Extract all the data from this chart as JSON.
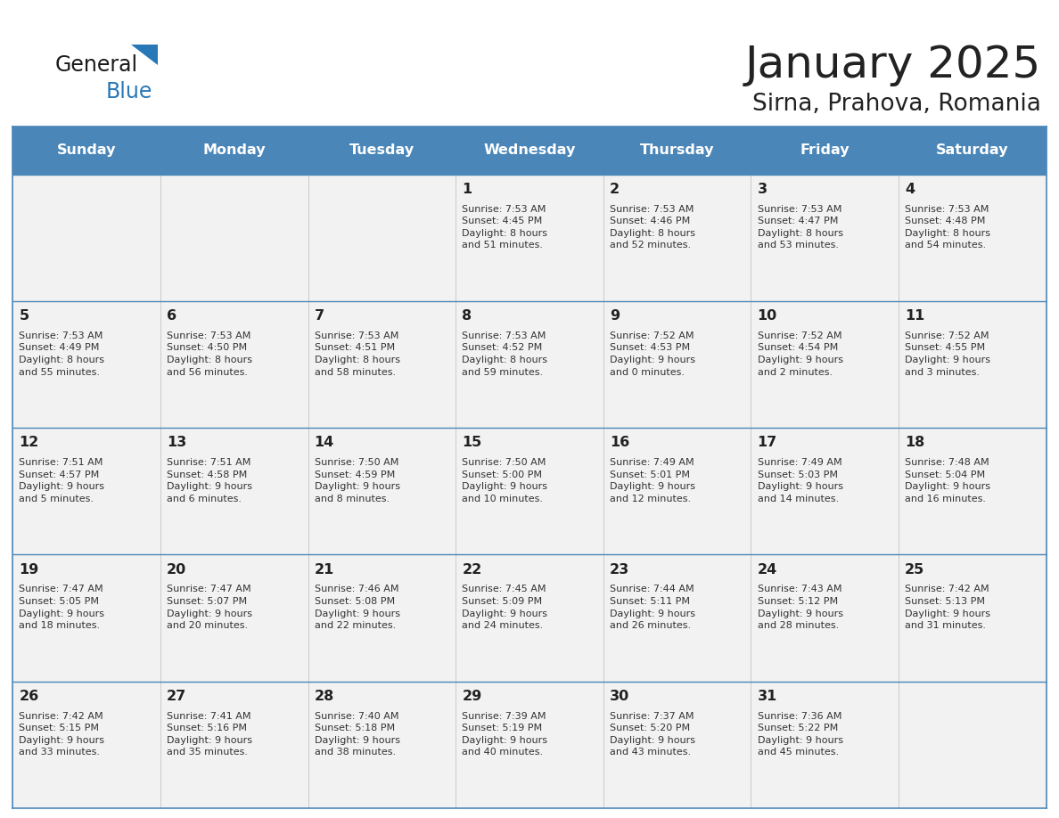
{
  "title": "January 2025",
  "subtitle": "Sirna, Prahova, Romania",
  "days_of_week": [
    "Sunday",
    "Monday",
    "Tuesday",
    "Wednesday",
    "Thursday",
    "Friday",
    "Saturday"
  ],
  "header_bg": "#4a86b8",
  "header_text": "#ffffff",
  "cell_bg_light": "#f2f2f2",
  "cell_bg_white": "#ffffff",
  "line_color": "#4a86b8",
  "title_color": "#222222",
  "subtitle_color": "#222222",
  "day_number_color": "#222222",
  "cell_text_color": "#333333",
  "calendar_data": [
    [
      {
        "day": "",
        "info": ""
      },
      {
        "day": "",
        "info": ""
      },
      {
        "day": "",
        "info": ""
      },
      {
        "day": "1",
        "info": "Sunrise: 7:53 AM\nSunset: 4:45 PM\nDaylight: 8 hours\nand 51 minutes."
      },
      {
        "day": "2",
        "info": "Sunrise: 7:53 AM\nSunset: 4:46 PM\nDaylight: 8 hours\nand 52 minutes."
      },
      {
        "day": "3",
        "info": "Sunrise: 7:53 AM\nSunset: 4:47 PM\nDaylight: 8 hours\nand 53 minutes."
      },
      {
        "day": "4",
        "info": "Sunrise: 7:53 AM\nSunset: 4:48 PM\nDaylight: 8 hours\nand 54 minutes."
      }
    ],
    [
      {
        "day": "5",
        "info": "Sunrise: 7:53 AM\nSunset: 4:49 PM\nDaylight: 8 hours\nand 55 minutes."
      },
      {
        "day": "6",
        "info": "Sunrise: 7:53 AM\nSunset: 4:50 PM\nDaylight: 8 hours\nand 56 minutes."
      },
      {
        "day": "7",
        "info": "Sunrise: 7:53 AM\nSunset: 4:51 PM\nDaylight: 8 hours\nand 58 minutes."
      },
      {
        "day": "8",
        "info": "Sunrise: 7:53 AM\nSunset: 4:52 PM\nDaylight: 8 hours\nand 59 minutes."
      },
      {
        "day": "9",
        "info": "Sunrise: 7:52 AM\nSunset: 4:53 PM\nDaylight: 9 hours\nand 0 minutes."
      },
      {
        "day": "10",
        "info": "Sunrise: 7:52 AM\nSunset: 4:54 PM\nDaylight: 9 hours\nand 2 minutes."
      },
      {
        "day": "11",
        "info": "Sunrise: 7:52 AM\nSunset: 4:55 PM\nDaylight: 9 hours\nand 3 minutes."
      }
    ],
    [
      {
        "day": "12",
        "info": "Sunrise: 7:51 AM\nSunset: 4:57 PM\nDaylight: 9 hours\nand 5 minutes."
      },
      {
        "day": "13",
        "info": "Sunrise: 7:51 AM\nSunset: 4:58 PM\nDaylight: 9 hours\nand 6 minutes."
      },
      {
        "day": "14",
        "info": "Sunrise: 7:50 AM\nSunset: 4:59 PM\nDaylight: 9 hours\nand 8 minutes."
      },
      {
        "day": "15",
        "info": "Sunrise: 7:50 AM\nSunset: 5:00 PM\nDaylight: 9 hours\nand 10 minutes."
      },
      {
        "day": "16",
        "info": "Sunrise: 7:49 AM\nSunset: 5:01 PM\nDaylight: 9 hours\nand 12 minutes."
      },
      {
        "day": "17",
        "info": "Sunrise: 7:49 AM\nSunset: 5:03 PM\nDaylight: 9 hours\nand 14 minutes."
      },
      {
        "day": "18",
        "info": "Sunrise: 7:48 AM\nSunset: 5:04 PM\nDaylight: 9 hours\nand 16 minutes."
      }
    ],
    [
      {
        "day": "19",
        "info": "Sunrise: 7:47 AM\nSunset: 5:05 PM\nDaylight: 9 hours\nand 18 minutes."
      },
      {
        "day": "20",
        "info": "Sunrise: 7:47 AM\nSunset: 5:07 PM\nDaylight: 9 hours\nand 20 minutes."
      },
      {
        "day": "21",
        "info": "Sunrise: 7:46 AM\nSunset: 5:08 PM\nDaylight: 9 hours\nand 22 minutes."
      },
      {
        "day": "22",
        "info": "Sunrise: 7:45 AM\nSunset: 5:09 PM\nDaylight: 9 hours\nand 24 minutes."
      },
      {
        "day": "23",
        "info": "Sunrise: 7:44 AM\nSunset: 5:11 PM\nDaylight: 9 hours\nand 26 minutes."
      },
      {
        "day": "24",
        "info": "Sunrise: 7:43 AM\nSunset: 5:12 PM\nDaylight: 9 hours\nand 28 minutes."
      },
      {
        "day": "25",
        "info": "Sunrise: 7:42 AM\nSunset: 5:13 PM\nDaylight: 9 hours\nand 31 minutes."
      }
    ],
    [
      {
        "day": "26",
        "info": "Sunrise: 7:42 AM\nSunset: 5:15 PM\nDaylight: 9 hours\nand 33 minutes."
      },
      {
        "day": "27",
        "info": "Sunrise: 7:41 AM\nSunset: 5:16 PM\nDaylight: 9 hours\nand 35 minutes."
      },
      {
        "day": "28",
        "info": "Sunrise: 7:40 AM\nSunset: 5:18 PM\nDaylight: 9 hours\nand 38 minutes."
      },
      {
        "day": "29",
        "info": "Sunrise: 7:39 AM\nSunset: 5:19 PM\nDaylight: 9 hours\nand 40 minutes."
      },
      {
        "day": "30",
        "info": "Sunrise: 7:37 AM\nSunset: 5:20 PM\nDaylight: 9 hours\nand 43 minutes."
      },
      {
        "day": "31",
        "info": "Sunrise: 7:36 AM\nSunset: 5:22 PM\nDaylight: 9 hours\nand 45 minutes."
      },
      {
        "day": "",
        "info": ""
      }
    ]
  ],
  "logo_text_general": "General",
  "logo_text_blue": "Blue",
  "fig_width": 11.88,
  "fig_height": 9.18,
  "dpi": 100
}
